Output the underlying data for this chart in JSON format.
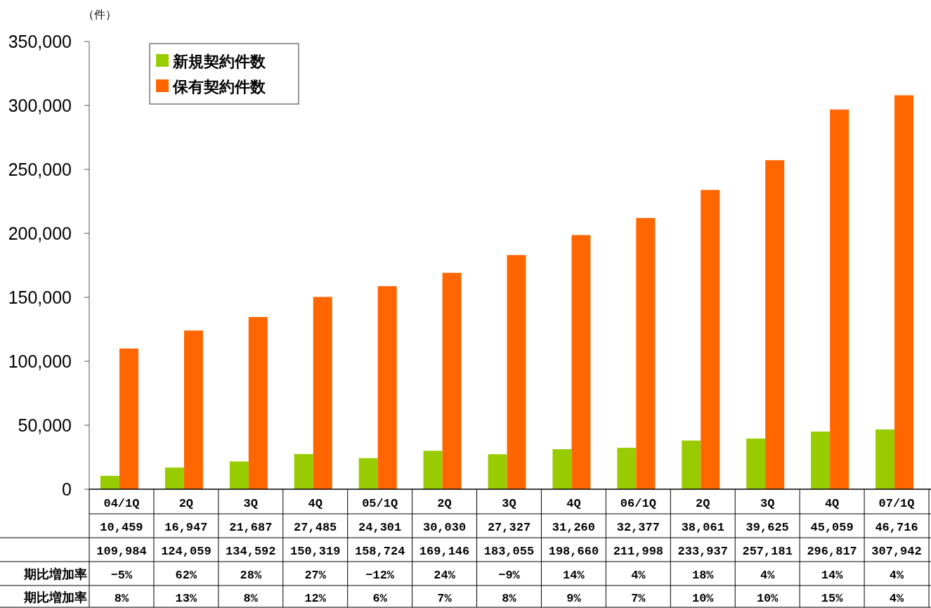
{
  "chart_data": {
    "type": "bar",
    "ylabel": "（件）",
    "categories": [
      "04/1Q",
      "2Q",
      "3Q",
      "4Q",
      "05/1Q",
      "2Q",
      "3Q",
      "4Q",
      "06/1Q",
      "2Q",
      "3Q",
      "4Q",
      "07/1Q"
    ],
    "series": [
      {
        "name": "新規契約件数",
        "color": "#99cc00",
        "values": [
          10459,
          16947,
          21687,
          27485,
          24301,
          30030,
          27327,
          31260,
          32377,
          38061,
          39625,
          45059,
          46716
        ],
        "value_labels": [
          "10,459",
          "16,947",
          "21,687",
          "27,485",
          "24,301",
          "30,030",
          "27,327",
          "31,260",
          "32,377",
          "38,061",
          "39,625",
          "45,059",
          "46,716"
        ]
      },
      {
        "name": "保有契約件数",
        "color": "#ff6600",
        "values": [
          109984,
          124059,
          134592,
          150319,
          158724,
          169146,
          183055,
          198660,
          211998,
          233937,
          257181,
          296817,
          307942
        ],
        "value_labels": [
          "109,984",
          "124,059",
          "134,592",
          "150,319",
          "158,724",
          "169,146",
          "183,055",
          "198,660",
          "211,998",
          "233,937",
          "257,181",
          "296,817",
          "307,942"
        ]
      }
    ],
    "ylim": [
      0,
      350000
    ],
    "yticks": [
      {
        "value": 0,
        "label": "0"
      },
      {
        "value": 50000,
        "label": "50,000"
      },
      {
        "value": 100000,
        "label": "100,000"
      },
      {
        "value": 150000,
        "label": "150,000"
      },
      {
        "value": 200000,
        "label": "200,000"
      },
      {
        "value": 250000,
        "label": "250,000"
      },
      {
        "value": 300000,
        "label": "300,000"
      },
      {
        "value": 350000,
        "label": "350,000"
      }
    ],
    "legend": "top left",
    "grid": false,
    "annotations": [
      "期比増加率",
      "−5%",
      "62%",
      "28%",
      "27%",
      "−12%",
      "24%",
      "−9%",
      "14%",
      "4%",
      "18%",
      "4%",
      "14%",
      "4%",
      "期比増加率",
      "8%",
      "13%",
      "8%",
      "12%",
      "6%",
      "7%",
      "8%",
      "9%",
      "7%",
      "10%",
      "10%",
      "15%",
      "4%"
    ]
  }
}
